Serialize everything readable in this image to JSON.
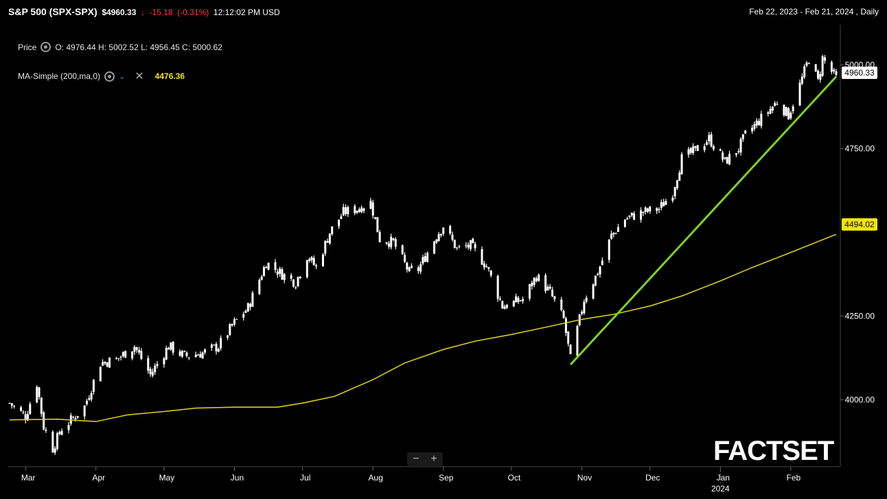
{
  "header": {
    "symbol": "S&P 500 (SPX-SPX)",
    "last_price": "$4960.33",
    "change": "-15.18",
    "change_pct": "(-0.31%)",
    "time": "12:12:02 PM USD",
    "date_range": "Feb 22, 2023 - Feb 21, 2024 , Daily"
  },
  "legend": {
    "price_label": "Price",
    "ohlc": "O: 4976.44  H: 5002.52  L: 4956.45  C: 5000.62",
    "ma_label": "MA-Simple (200,ma,0)",
    "ma_value": "4476.36"
  },
  "tags": {
    "last": "4960.33",
    "ma": "4494.02"
  },
  "brand": "FACTSET",
  "zoom": {
    "minus": "−",
    "plus": "+"
  },
  "colors": {
    "background": "#000000",
    "bars": "#ffffff",
    "ma_line": "#d9cc1c",
    "trendline": "#7ed321",
    "down": "#ff3b3b"
  },
  "chart_data": {
    "type": "line",
    "y_axis": {
      "ticks": [
        {
          "value": 4000,
          "label": "4000.00"
        },
        {
          "value": 4250,
          "label": "4250.00"
        },
        {
          "value": 4750,
          "label": "4750.00"
        },
        {
          "value": 5000,
          "label": "5000.00"
        }
      ],
      "ylim": [
        3800,
        5120
      ]
    },
    "x_axis": {
      "labels": [
        "Mar",
        "Apr",
        "May",
        "Jun",
        "Jul",
        "Aug",
        "Sep",
        "Oct",
        "Nov",
        "Dec",
        "Jan",
        "Feb"
      ],
      "year_label": "2024",
      "xlim": [
        "2023-02-22",
        "2024-02-21"
      ]
    },
    "price_closes": [
      {
        "date": "2023-02-22",
        "close": 3990
      },
      {
        "date": "2023-03-01",
        "close": 3950
      },
      {
        "date": "2023-03-06",
        "close": 4050
      },
      {
        "date": "2023-03-09",
        "close": 3920
      },
      {
        "date": "2023-03-13",
        "close": 3855
      },
      {
        "date": "2023-03-17",
        "close": 3915
      },
      {
        "date": "2023-03-22",
        "close": 3945
      },
      {
        "date": "2023-03-27",
        "close": 3980
      },
      {
        "date": "2023-04-03",
        "close": 4110
      },
      {
        "date": "2023-04-10",
        "close": 4120
      },
      {
        "date": "2023-04-18",
        "close": 4160
      },
      {
        "date": "2023-04-25",
        "close": 4075
      },
      {
        "date": "2023-05-03",
        "close": 4160
      },
      {
        "date": "2023-05-10",
        "close": 4130
      },
      {
        "date": "2023-05-18",
        "close": 4140
      },
      {
        "date": "2023-05-25",
        "close": 4160
      },
      {
        "date": "2023-06-01",
        "close": 4230
      },
      {
        "date": "2023-06-07",
        "close": 4275
      },
      {
        "date": "2023-06-15",
        "close": 4410
      },
      {
        "date": "2023-06-22",
        "close": 4375
      },
      {
        "date": "2023-06-28",
        "close": 4350
      },
      {
        "date": "2023-07-03",
        "close": 4430
      },
      {
        "date": "2023-07-07",
        "close": 4395
      },
      {
        "date": "2023-07-13",
        "close": 4500
      },
      {
        "date": "2023-07-19",
        "close": 4560
      },
      {
        "date": "2023-07-25",
        "close": 4570
      },
      {
        "date": "2023-07-31",
        "close": 4590
      },
      {
        "date": "2023-08-04",
        "close": 4480
      },
      {
        "date": "2023-08-10",
        "close": 4470
      },
      {
        "date": "2023-08-17",
        "close": 4380
      },
      {
        "date": "2023-08-21",
        "close": 4390
      },
      {
        "date": "2023-08-29",
        "close": 4490
      },
      {
        "date": "2023-09-01",
        "close": 4520
      },
      {
        "date": "2023-09-07",
        "close": 4450
      },
      {
        "date": "2023-09-13",
        "close": 4460
      },
      {
        "date": "2023-09-20",
        "close": 4400
      },
      {
        "date": "2023-09-27",
        "close": 4280
      },
      {
        "date": "2023-10-02",
        "close": 4290
      },
      {
        "date": "2023-10-06",
        "close": 4300
      },
      {
        "date": "2023-10-12",
        "close": 4370
      },
      {
        "date": "2023-10-18",
        "close": 4320
      },
      {
        "date": "2023-10-24",
        "close": 4240
      },
      {
        "date": "2023-10-27",
        "close": 4120
      },
      {
        "date": "2023-11-02",
        "close": 4300
      },
      {
        "date": "2023-11-08",
        "close": 4380
      },
      {
        "date": "2023-11-14",
        "close": 4490
      },
      {
        "date": "2023-11-20",
        "close": 4540
      },
      {
        "date": "2023-11-28",
        "close": 4560
      },
      {
        "date": "2023-12-05",
        "close": 4570
      },
      {
        "date": "2023-12-11",
        "close": 4620
      },
      {
        "date": "2023-12-15",
        "close": 4720
      },
      {
        "date": "2023-12-20",
        "close": 4740
      },
      {
        "date": "2023-12-27",
        "close": 4780
      },
      {
        "date": "2024-01-03",
        "close": 4710
      },
      {
        "date": "2024-01-09",
        "close": 4750
      },
      {
        "date": "2024-01-12",
        "close": 4790
      },
      {
        "date": "2024-01-19",
        "close": 4840
      },
      {
        "date": "2024-01-26",
        "close": 4890
      },
      {
        "date": "2024-01-31",
        "close": 4850
      },
      {
        "date": "2024-02-05",
        "close": 4940
      },
      {
        "date": "2024-02-09",
        "close": 5020
      },
      {
        "date": "2024-02-13",
        "close": 4950
      },
      {
        "date": "2024-02-15",
        "close": 5020
      },
      {
        "date": "2024-02-21",
        "close": 4960
      }
    ],
    "ma_200": [
      {
        "date": "2023-02-22",
        "value": 3940
      },
      {
        "date": "2023-03-15",
        "value": 3942
      },
      {
        "date": "2023-04-01",
        "value": 3935
      },
      {
        "date": "2023-04-15",
        "value": 3955
      },
      {
        "date": "2023-05-01",
        "value": 3965
      },
      {
        "date": "2023-05-15",
        "value": 3975
      },
      {
        "date": "2023-06-01",
        "value": 3978
      },
      {
        "date": "2023-06-20",
        "value": 3978
      },
      {
        "date": "2023-07-01",
        "value": 3990
      },
      {
        "date": "2023-07-15",
        "value": 4010
      },
      {
        "date": "2023-08-01",
        "value": 4060
      },
      {
        "date": "2023-08-15",
        "value": 4110
      },
      {
        "date": "2023-09-01",
        "value": 4150
      },
      {
        "date": "2023-09-15",
        "value": 4175
      },
      {
        "date": "2023-10-01",
        "value": 4195
      },
      {
        "date": "2023-10-15",
        "value": 4215
      },
      {
        "date": "2023-11-01",
        "value": 4240
      },
      {
        "date": "2023-11-15",
        "value": 4255
      },
      {
        "date": "2023-12-01",
        "value": 4280
      },
      {
        "date": "2023-12-15",
        "value": 4310
      },
      {
        "date": "2024-01-01",
        "value": 4355
      },
      {
        "date": "2024-01-15",
        "value": 4395
      },
      {
        "date": "2024-02-01",
        "value": 4440
      },
      {
        "date": "2024-02-21",
        "value": 4494
      }
    ],
    "trendline": [
      {
        "date": "2023-10-27",
        "value": 4105
      },
      {
        "date": "2024-02-21",
        "value": 4965
      }
    ]
  }
}
